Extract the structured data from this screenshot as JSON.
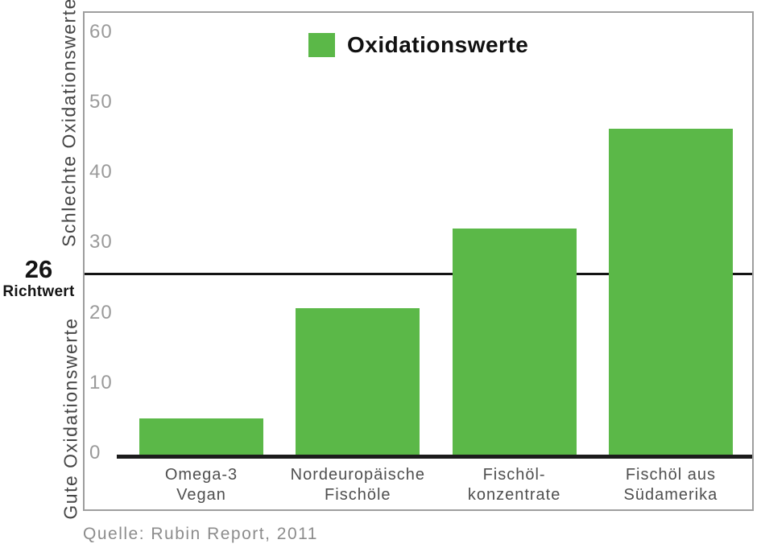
{
  "chart_data": {
    "type": "bar",
    "title": "",
    "legend": {
      "label": "Oxidationswerte"
    },
    "categories": [
      [
        "Omega-3",
        "Vegan"
      ],
      [
        "Nordeuropäische",
        "Fischöle"
      ],
      [
        "Fischöl-",
        "konzentrate"
      ],
      [
        "Fischöl aus",
        "Südamerika"
      ]
    ],
    "values": [
      5.4,
      21.1,
      32.5,
      46.7
    ],
    "y_ticks": [
      60,
      50,
      40,
      30,
      20,
      10,
      0
    ],
    "ylim": [
      0,
      63
    ],
    "grid": "off",
    "legend_position": "inside-top-center",
    "ylabel_top": "Schlechte Oxidationswerte",
    "ylabel_bottom": "Gute Oxidationswerte",
    "reference_line": {
      "value": 26,
      "label_number": "26",
      "label_text": "Richtwert"
    },
    "source": "Quelle: Rubin Report, 2011",
    "colors": {
      "bar": "#5bb848",
      "axis_line": "#1c1c1c",
      "reference_line": "#141414",
      "tick_label": "#9a9a9a",
      "category_label": "#4f4f4f",
      "source_text": "#8c8c8c",
      "plot_border": "#9e9e9e",
      "legend_text": "#111111"
    }
  }
}
